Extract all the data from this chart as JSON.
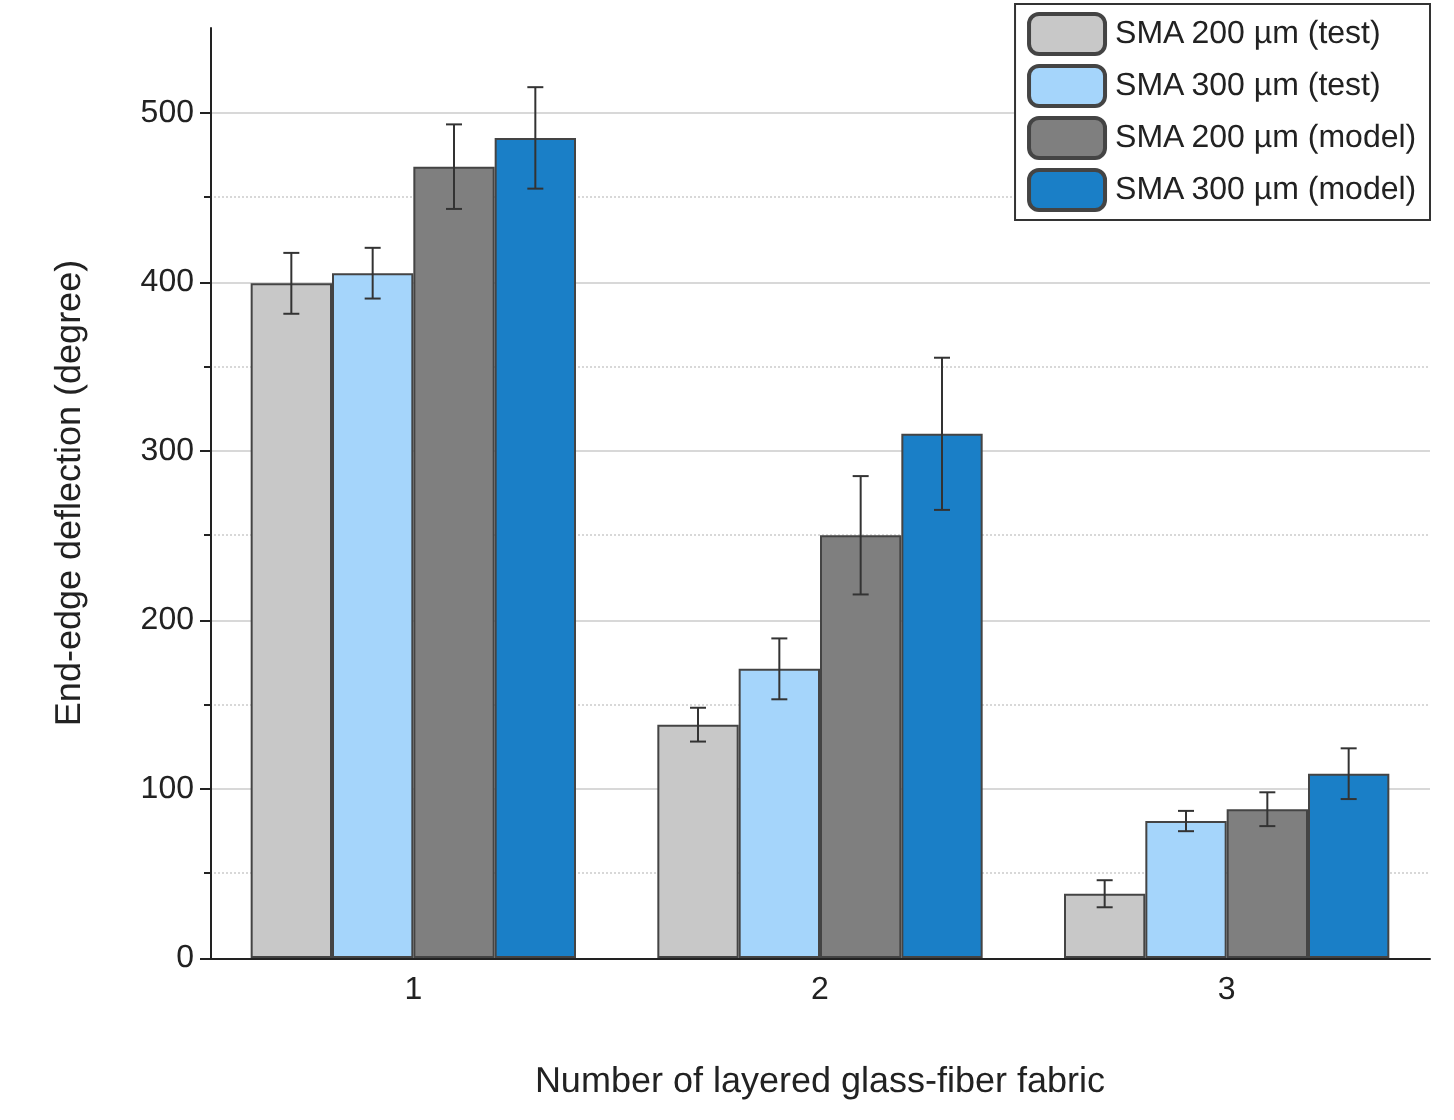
{
  "chart_data": {
    "type": "bar",
    "xlabel": "Number of layered glass-fiber fabric",
    "ylabel": "End-edge deflection (degree)",
    "categories": [
      "1",
      "2",
      "3"
    ],
    "series": [
      {
        "name": "SMA 200 µm (test)",
        "color": "#c8c8c8",
        "values": [
          399,
          138,
          38
        ],
        "errors": [
          18,
          10,
          8
        ]
      },
      {
        "name": "SMA 300 µm (test)",
        "color": "#a5d5fb",
        "values": [
          405,
          171,
          81
        ],
        "errors": [
          15,
          18,
          6
        ]
      },
      {
        "name": "SMA 200 µm (model)",
        "color": "#7f7f7f",
        "values": [
          468,
          250,
          88
        ],
        "errors": [
          25,
          35,
          10
        ]
      },
      {
        "name": "SMA 300 µm (model)",
        "color": "#1a7fc7",
        "values": [
          485,
          310,
          109
        ],
        "errors": [
          30,
          45,
          15
        ]
      }
    ],
    "ylim": [
      0,
      550
    ],
    "yticks": [
      0,
      100,
      200,
      300,
      400,
      500
    ],
    "grid": "y",
    "legend": "top right"
  }
}
